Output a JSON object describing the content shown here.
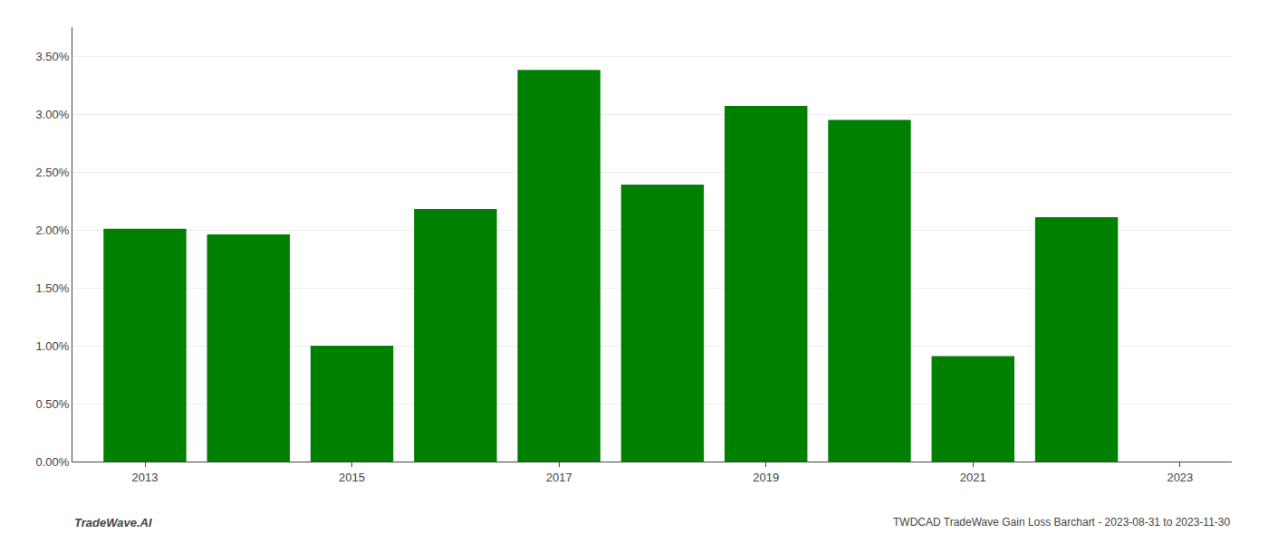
{
  "chart_data": {
    "type": "bar",
    "x": [
      2013,
      2014,
      2015,
      2016,
      2017,
      2018,
      2019,
      2020,
      2021,
      2022
    ],
    "values": [
      0.0201,
      0.0196,
      0.01,
      0.0218,
      0.0338,
      0.0239,
      0.0307,
      0.0295,
      0.0091,
      0.0211
    ],
    "color": "#008000",
    "xlim": [
      2012.3,
      2023.5
    ],
    "xticks": [
      2013,
      2015,
      2017,
      2019,
      2021,
      2023
    ],
    "ylim": [
      0.0,
      0.0375
    ],
    "yticks": [
      {
        "value": 0.0,
        "label": "0.00%"
      },
      {
        "value": 0.005,
        "label": "0.50%"
      },
      {
        "value": 0.01,
        "label": "1.00%"
      },
      {
        "value": 0.015,
        "label": "1.50%"
      },
      {
        "value": 0.02,
        "label": "2.00%"
      },
      {
        "value": 0.025,
        "label": "2.50%"
      },
      {
        "value": 0.03,
        "label": "3.00%"
      },
      {
        "value": 0.035,
        "label": "3.50%"
      }
    ],
    "grid": true,
    "annotations": [
      "TradeWave.AI",
      "TWDCAD TradeWave Gain Loss Barchart - 2023-08-31 to 2023-11-30"
    ]
  }
}
